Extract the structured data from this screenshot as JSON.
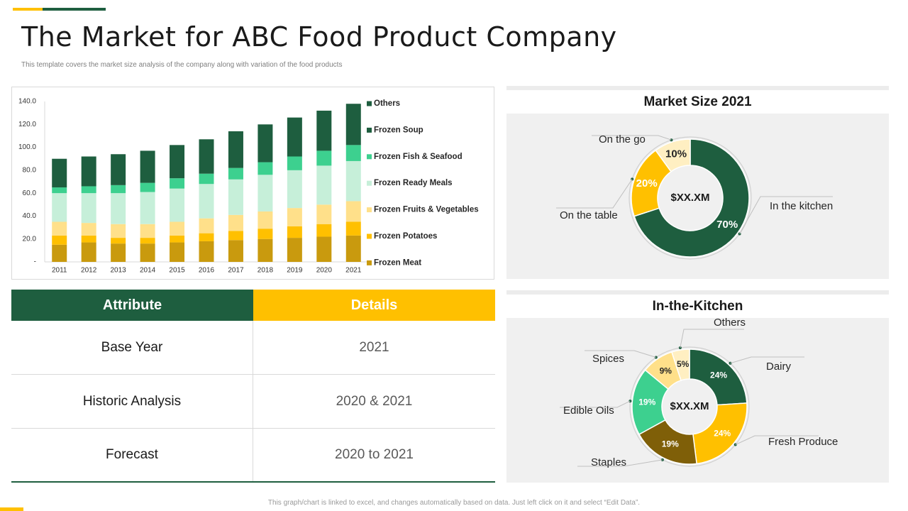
{
  "page": {
    "title": "The Market for ABC Food Product Company",
    "subtitle": "This template covers the market size analysis of the company along with variation of the food products",
    "footnote": "This graph/chart is linked to excel, and changes automatically based on data. Just left click on it and select “Edit Data”."
  },
  "colors": {
    "dark_green": "#1E5E3F",
    "yellow": "#FFC000"
  },
  "chart_data": [
    {
      "type": "bar",
      "stacked": true,
      "title": "",
      "xlabel": "",
      "ylabel": "",
      "ylim": [
        0,
        140
      ],
      "yticks": [
        "-",
        "20.0",
        "40.0",
        "60.0",
        "80.0",
        "100.0",
        "120.0",
        "140.0"
      ],
      "categories": [
        "2011",
        "2012",
        "2013",
        "2014",
        "2015",
        "2016",
        "2017",
        "2018",
        "2019",
        "2020",
        "2021"
      ],
      "series": [
        {
          "name": "Frozen Meat",
          "color": "#C99A0E",
          "values": [
            15,
            17,
            16,
            16,
            17,
            18,
            19,
            20,
            21,
            22,
            23
          ]
        },
        {
          "name": "Frozen Potatoes",
          "color": "#FFC000",
          "values": [
            8,
            6,
            5,
            5,
            6,
            7,
            8,
            9,
            10,
            11,
            12
          ]
        },
        {
          "name": "Frozen Fruits & Vegetables",
          "color": "#FFE08A",
          "values": [
            12,
            11,
            12,
            12,
            12,
            13,
            14,
            15,
            16,
            17,
            18
          ]
        },
        {
          "name": "Frozen Ready Meals",
          "color": "#C6EFD9",
          "values": [
            25,
            26,
            27,
            28,
            29,
            30,
            31,
            32,
            33,
            34,
            35
          ]
        },
        {
          "name": "Frozen Fish & Seafood",
          "color": "#3DD08F",
          "values": [
            5,
            6,
            7,
            8,
            9,
            9,
            10,
            11,
            12,
            13,
            14
          ]
        },
        {
          "name": "Frozen Soup",
          "color": "#1E5E3F",
          "values": [
            25,
            26,
            27,
            28,
            29,
            30,
            32,
            33,
            34,
            35,
            36
          ]
        },
        {
          "name": "Others",
          "color": "#1E5E3F",
          "values": [
            0,
            0,
            0,
            0,
            0,
            0,
            0,
            0,
            0,
            0,
            0
          ]
        }
      ],
      "legend": [
        "Others",
        "Frozen Soup",
        "Frozen Fish & Seafood",
        "Frozen Ready Meals",
        "Frozen Fruits & Vegetables",
        "Frozen Potatoes",
        "Frozen Meat"
      ],
      "legend_colors": [
        "#1E5E3F",
        "#1E5E3F",
        "#3DD08F",
        "#C6EFD9",
        "#FFE08A",
        "#FFC000",
        "#C99A0E"
      ],
      "legend_position": "right"
    },
    {
      "type": "pie",
      "donut": true,
      "title": "Market Size 2021",
      "center_label": "$XX.XM",
      "slices": [
        {
          "label": "In the kitchen",
          "value": 70,
          "display": "70%",
          "color": "#1E5E3F"
        },
        {
          "label": "On the table",
          "value": 20,
          "display": "20%",
          "color": "#FFC000"
        },
        {
          "label": "On the go",
          "value": 10,
          "display": "10%",
          "color": "#FFEFC2"
        }
      ]
    },
    {
      "type": "pie",
      "donut": true,
      "title": "In-the-Kitchen",
      "center_label": "$XX.XM",
      "slices": [
        {
          "label": "Dairy",
          "value": 24,
          "display": "24%",
          "color": "#1E5E3F"
        },
        {
          "label": "Fresh Produce",
          "value": 24,
          "display": "24%",
          "color": "#FFC000"
        },
        {
          "label": "Staples",
          "value": 19,
          "display": "19%",
          "color": "#7F5F08"
        },
        {
          "label": "Edible Oils",
          "value": 19,
          "display": "19%",
          "color": "#3DD08F"
        },
        {
          "label": "Spices",
          "value": 9,
          "display": "9%",
          "color": "#FFE08A"
        },
        {
          "label": "Others",
          "value": 5,
          "display": "5%",
          "color": "#FFEFC2"
        }
      ]
    }
  ],
  "table": {
    "headers": {
      "attribute": "Attribute",
      "details": "Details"
    },
    "rows": [
      {
        "attribute": "Base Year",
        "details": "2021"
      },
      {
        "attribute": "Historic Analysis",
        "details": "2020 & 2021"
      },
      {
        "attribute": "Forecast",
        "details": "2020 to 2021"
      }
    ]
  }
}
